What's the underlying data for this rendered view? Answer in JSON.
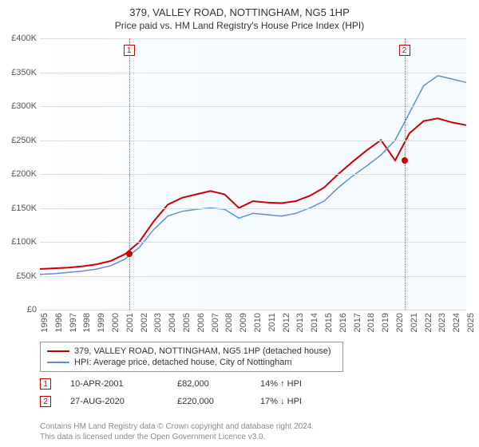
{
  "title": "379, VALLEY ROAD, NOTTINGHAM, NG5 1HP",
  "subtitle": "Price paid vs. HM Land Registry's House Price Index (HPI)",
  "chart": {
    "type": "line",
    "background_color": "#ffffff",
    "plot_bg_gradient": [
      "#ffffff",
      "#f6fbff"
    ],
    "grid_color": "#dddddd",
    "ylim": [
      0,
      400000
    ],
    "ytick_step": 50000,
    "y_prefix": "£",
    "y_ticks": [
      "£0",
      "£50K",
      "£100K",
      "£150K",
      "£200K",
      "£250K",
      "£300K",
      "£350K",
      "£400K"
    ],
    "x_years": [
      1995,
      1996,
      1997,
      1998,
      1999,
      2000,
      2001,
      2002,
      2003,
      2004,
      2005,
      2006,
      2007,
      2008,
      2009,
      2010,
      2011,
      2012,
      2013,
      2014,
      2015,
      2016,
      2017,
      2018,
      2019,
      2020,
      2021,
      2022,
      2023,
      2024,
      2025
    ],
    "series": [
      {
        "name": "price_paid",
        "label": "379, VALLEY ROAD, NOTTINGHAM, NG5 1HP (detached house)",
        "color": "#cc0000",
        "line_width": 2,
        "values": [
          60000,
          61000,
          62000,
          64000,
          67000,
          72000,
          82000,
          100000,
          130000,
          155000,
          165000,
          170000,
          175000,
          170000,
          150000,
          160000,
          158000,
          157000,
          160000,
          168000,
          180000,
          200000,
          218000,
          235000,
          250000,
          220000,
          260000,
          278000,
          282000,
          276000,
          272000
        ]
      },
      {
        "name": "hpi",
        "label": "HPI: Average price, detached house, City of Nottingham",
        "color": "#5b8fd6",
        "line_width": 1.5,
        "values": [
          52000,
          53000,
          55000,
          57000,
          60000,
          65000,
          75000,
          92000,
          118000,
          138000,
          145000,
          148000,
          150000,
          148000,
          135000,
          142000,
          140000,
          138000,
          142000,
          150000,
          160000,
          180000,
          197000,
          212000,
          228000,
          250000,
          290000,
          330000,
          345000,
          340000,
          335000
        ]
      }
    ],
    "sale_markers": [
      {
        "n": "1",
        "year": 2001.27,
        "price": 82000,
        "color": "#cc0000"
      },
      {
        "n": "2",
        "year": 2020.65,
        "price": 220000,
        "color": "#cc0000"
      }
    ]
  },
  "legend": {
    "rows": [
      {
        "color": "#cc0000",
        "label": "379, VALLEY ROAD, NOTTINGHAM, NG5 1HP (detached house)"
      },
      {
        "color": "#5b8fd6",
        "label": "HPI: Average price, detached house, City of Nottingham"
      }
    ]
  },
  "sales": [
    {
      "n": "1",
      "date": "10-APR-2001",
      "price": "£82,000",
      "delta": "14% ↑ HPI"
    },
    {
      "n": "2",
      "date": "27-AUG-2020",
      "price": "£220,000",
      "delta": "17% ↓ HPI"
    }
  ],
  "footer": {
    "line1": "Contains HM Land Registry data © Crown copyright and database right 2024.",
    "line2": "This data is licensed under the Open Government Licence v3.0."
  }
}
